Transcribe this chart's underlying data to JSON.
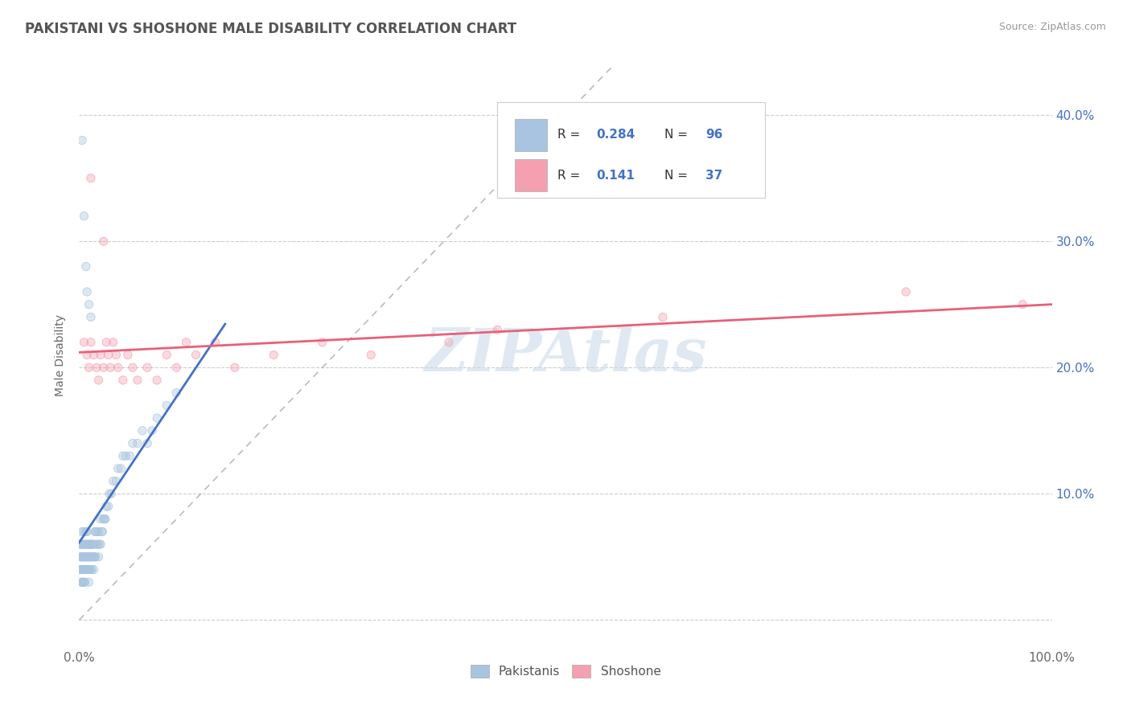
{
  "title": "PAKISTANI VS SHOSHONE MALE DISABILITY CORRELATION CHART",
  "source": "Source: ZipAtlas.com",
  "ylabel": "Male Disability",
  "xlim": [
    0.0,
    1.0
  ],
  "ylim": [
    -0.02,
    0.44
  ],
  "ytick_vals": [
    0.0,
    0.1,
    0.2,
    0.3,
    0.4
  ],
  "xtick_vals": [
    0.0,
    0.1,
    0.2,
    0.3,
    0.4,
    0.5,
    0.6,
    0.7,
    0.8,
    0.9,
    1.0
  ],
  "pakistani_color": "#a8c4e0",
  "shoshone_color": "#f4a0b0",
  "pakistani_line_color": "#4472c4",
  "shoshone_line_color": "#e8607a",
  "R_pakistani": 0.284,
  "N_pakistani": 96,
  "R_shoshone": 0.141,
  "N_shoshone": 37,
  "legend_label_1": "Pakistanis",
  "legend_label_2": "Shoshone",
  "watermark": "ZIPAtlas",
  "pakistani_x": [
    0.001,
    0.001,
    0.001,
    0.002,
    0.002,
    0.002,
    0.002,
    0.003,
    0.003,
    0.003,
    0.003,
    0.003,
    0.004,
    0.004,
    0.004,
    0.004,
    0.005,
    0.005,
    0.005,
    0.005,
    0.005,
    0.006,
    0.006,
    0.006,
    0.006,
    0.007,
    0.007,
    0.007,
    0.007,
    0.008,
    0.008,
    0.008,
    0.008,
    0.009,
    0.009,
    0.009,
    0.01,
    0.01,
    0.01,
    0.01,
    0.011,
    0.011,
    0.011,
    0.012,
    0.012,
    0.012,
    0.013,
    0.013,
    0.013,
    0.014,
    0.014,
    0.015,
    0.015,
    0.015,
    0.016,
    0.016,
    0.017,
    0.017,
    0.018,
    0.018,
    0.019,
    0.02,
    0.02,
    0.021,
    0.022,
    0.022,
    0.023,
    0.024,
    0.025,
    0.026,
    0.027,
    0.028,
    0.03,
    0.031,
    0.033,
    0.035,
    0.038,
    0.04,
    0.043,
    0.045,
    0.048,
    0.052,
    0.055,
    0.06,
    0.065,
    0.07,
    0.075,
    0.08,
    0.09,
    0.1,
    0.003,
    0.005,
    0.007,
    0.008,
    0.01,
    0.012
  ],
  "pakistani_y": [
    0.04,
    0.05,
    0.06,
    0.03,
    0.04,
    0.05,
    0.06,
    0.03,
    0.04,
    0.05,
    0.06,
    0.07,
    0.03,
    0.04,
    0.05,
    0.06,
    0.03,
    0.04,
    0.05,
    0.06,
    0.07,
    0.03,
    0.04,
    0.05,
    0.06,
    0.04,
    0.05,
    0.06,
    0.07,
    0.04,
    0.05,
    0.06,
    0.07,
    0.04,
    0.05,
    0.06,
    0.03,
    0.04,
    0.05,
    0.06,
    0.04,
    0.05,
    0.06,
    0.04,
    0.05,
    0.06,
    0.04,
    0.05,
    0.06,
    0.05,
    0.06,
    0.04,
    0.05,
    0.06,
    0.05,
    0.07,
    0.05,
    0.07,
    0.06,
    0.07,
    0.06,
    0.05,
    0.07,
    0.06,
    0.06,
    0.08,
    0.07,
    0.07,
    0.08,
    0.08,
    0.08,
    0.09,
    0.09,
    0.1,
    0.1,
    0.11,
    0.11,
    0.12,
    0.12,
    0.13,
    0.13,
    0.13,
    0.14,
    0.14,
    0.15,
    0.14,
    0.15,
    0.16,
    0.17,
    0.18,
    0.38,
    0.32,
    0.28,
    0.26,
    0.25,
    0.24
  ],
  "shoshone_x": [
    0.005,
    0.008,
    0.01,
    0.012,
    0.015,
    0.018,
    0.02,
    0.022,
    0.025,
    0.028,
    0.03,
    0.032,
    0.035,
    0.038,
    0.04,
    0.045,
    0.05,
    0.055,
    0.06,
    0.07,
    0.08,
    0.09,
    0.1,
    0.11,
    0.12,
    0.14,
    0.16,
    0.2,
    0.25,
    0.3,
    0.38,
    0.43,
    0.6,
    0.85,
    0.97,
    0.012,
    0.025
  ],
  "shoshone_y": [
    0.22,
    0.21,
    0.2,
    0.22,
    0.21,
    0.2,
    0.19,
    0.21,
    0.2,
    0.22,
    0.21,
    0.2,
    0.22,
    0.21,
    0.2,
    0.19,
    0.21,
    0.2,
    0.19,
    0.2,
    0.19,
    0.21,
    0.2,
    0.22,
    0.21,
    0.22,
    0.2,
    0.21,
    0.22,
    0.21,
    0.22,
    0.23,
    0.24,
    0.26,
    0.25,
    0.35,
    0.3
  ],
  "pak_trend_x0": 0.0,
  "pak_trend_x1": 0.15,
  "sho_trend_x0": 0.0,
  "sho_trend_x1": 1.0
}
